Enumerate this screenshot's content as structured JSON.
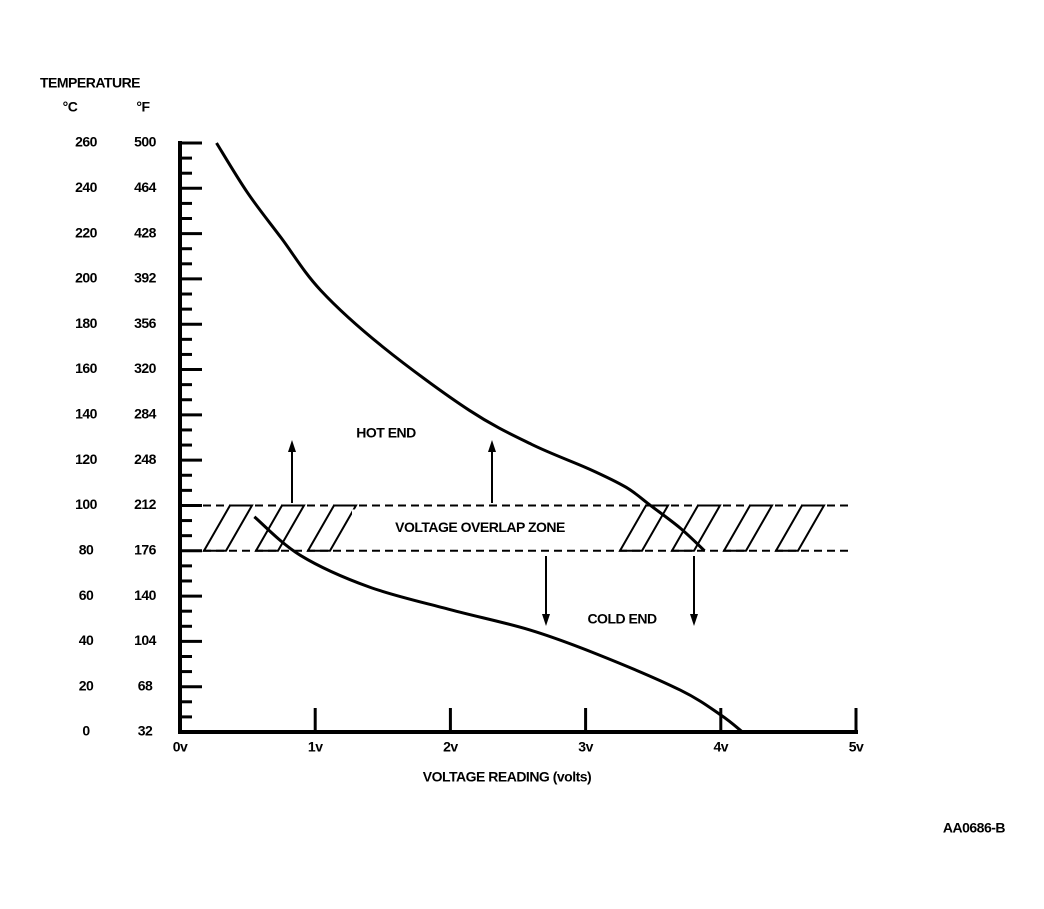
{
  "chart_data": {
    "type": "line",
    "y_header": "TEMPERATURE",
    "ylabel": "°C",
    "y2label": "°F",
    "xlabel": "VOLTAGE READING (volts)",
    "code": "AA0686-B",
    "xlim": [
      0,
      5
    ],
    "xticks": [
      {
        "value": 0,
        "label": "0v"
      },
      {
        "value": 1,
        "label": "1v"
      },
      {
        "value": 2,
        "label": "2v"
      },
      {
        "value": 3,
        "label": "3v"
      },
      {
        "value": 4,
        "label": "4v"
      },
      {
        "value": 5,
        "label": "5v"
      }
    ],
    "ylim": [
      0,
      260
    ],
    "yticks": [
      0,
      20,
      40,
      60,
      80,
      100,
      120,
      140,
      160,
      180,
      200,
      220,
      240,
      260
    ],
    "y2lim": [
      32,
      500
    ],
    "y2ticks": [
      32,
      68,
      104,
      140,
      176,
      212,
      248,
      284,
      320,
      356,
      392,
      428,
      464,
      500
    ],
    "zone": {
      "label": "VOLTAGE OVERLAP ZONE",
      "y": [
        80,
        100
      ]
    },
    "series": [
      {
        "name": "HOT END",
        "color": "#000000",
        "x": [
          0.27,
          0.5,
          0.75,
          1.04,
          1.5,
          2.14,
          2.6,
          3.03,
          3.3,
          3.48,
          3.7,
          3.88
        ],
        "values": [
          260,
          238,
          218,
          195,
          170,
          142,
          127,
          116,
          108,
          100,
          90,
          80
        ]
      },
      {
        "name": "COLD END",
        "color": "#000000",
        "x": [
          0.55,
          0.89,
          1.4,
          2.0,
          2.59,
          3.1,
          3.7,
          4.0,
          4.16
        ],
        "values": [
          95,
          78,
          64,
          54,
          45,
          34,
          18.5,
          7.5,
          0
        ]
      }
    ]
  }
}
